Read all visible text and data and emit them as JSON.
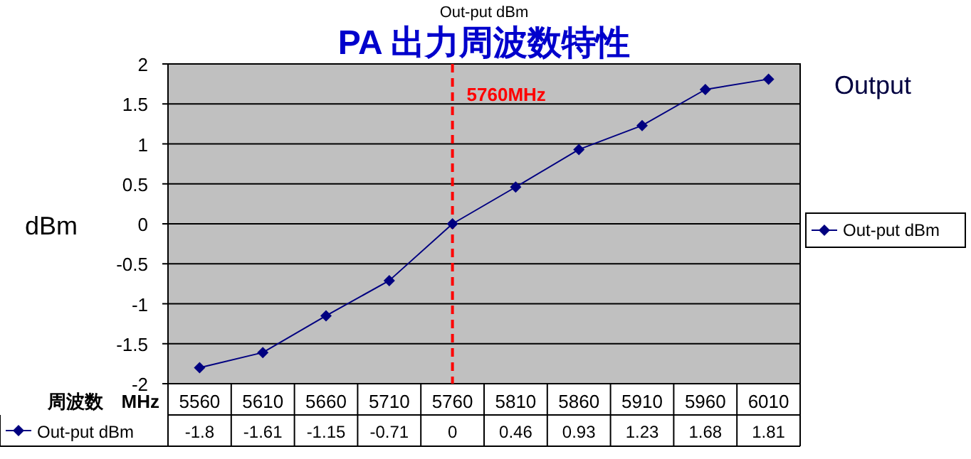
{
  "chart_data": {
    "type": "line",
    "title": "PA 出力周波数特性",
    "subtitle": "Out-put dBm",
    "ylabel": "dBm",
    "xlabel": "周波数　MHz",
    "annotations": [
      "Output"
    ],
    "categories": [
      "5560",
      "5610",
      "5660",
      "5710",
      "5760",
      "5810",
      "5860",
      "5910",
      "5960",
      "6010"
    ],
    "series": [
      {
        "name": "Out-put dBm",
        "color": "#000080",
        "values": [
          -1.8,
          -1.61,
          -1.15,
          -0.71,
          0,
          0.46,
          0.93,
          1.23,
          1.68,
          1.81
        ]
      }
    ],
    "ylim": [
      -2,
      2
    ],
    "yticks": [
      -2,
      -1.5,
      -1,
      -0.5,
      0,
      0.5,
      1,
      1.5,
      2
    ],
    "grid": "y",
    "legend": "right",
    "marker": "diamond",
    "line_style": "solid",
    "data_labels": true,
    "ref_lines": [
      {
        "axis": "x",
        "value": "5760",
        "label": "5760MHz",
        "color": "#ff0000",
        "line_style": "dashed"
      }
    ]
  }
}
